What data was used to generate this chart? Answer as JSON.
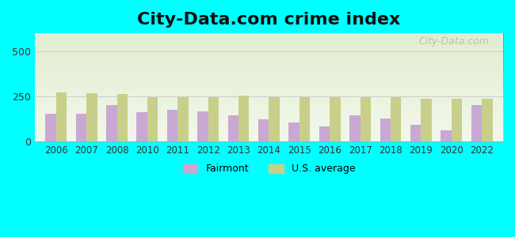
{
  "title": "City-Data.com crime index",
  "years": [
    2006,
    2007,
    2008,
    2010,
    2011,
    2012,
    2013,
    2014,
    2015,
    2016,
    2017,
    2018,
    2019,
    2020,
    2022
  ],
  "fairmont": [
    155,
    155,
    205,
    165,
    175,
    170,
    145,
    125,
    105,
    85,
    145,
    130,
    95,
    65,
    205
  ],
  "us_average": [
    275,
    270,
    265,
    248,
    245,
    245,
    255,
    248,
    248,
    248,
    248,
    245,
    240,
    240,
    238
  ],
  "fairmont_color": "#c9a8d4",
  "us_avg_color": "#c8cf8a",
  "background_top": "#f0f4e8",
  "background_bottom": "#e8f0d0",
  "figure_bg": "#00ffff",
  "ylim": [
    0,
    600
  ],
  "yticks": [
    0,
    250,
    500
  ],
  "ylabel": "",
  "xlabel": "",
  "legend_labels": [
    "Fairmont",
    "U.S. average"
  ],
  "watermark": "City-Data.com",
  "title_fontsize": 16,
  "bar_width": 0.35
}
